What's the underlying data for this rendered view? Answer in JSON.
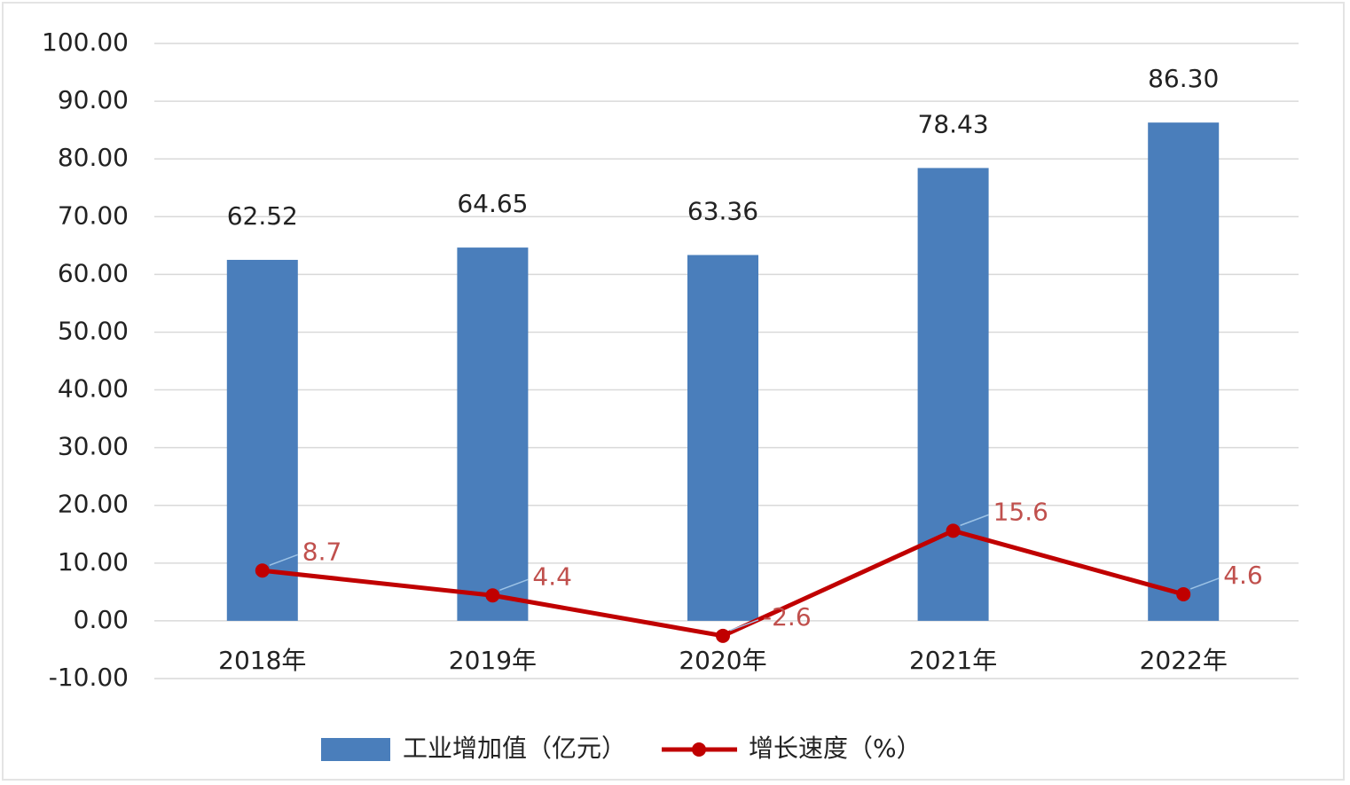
{
  "chart_data": {
    "type": "bar",
    "categories": [
      "2018年",
      "2019年",
      "2020年",
      "2021年",
      "2022年"
    ],
    "series": [
      {
        "name": "工业增加值（亿元）",
        "type": "bar",
        "color": "#4a7ebb",
        "values": [
          62.52,
          64.65,
          63.36,
          78.43,
          86.3
        ],
        "value_labels": [
          "62.52",
          "64.65",
          "63.36",
          "78.43",
          "86.30"
        ]
      },
      {
        "name": "增长速度（%）",
        "type": "line",
        "color": "#c00000",
        "values": [
          8.7,
          4.4,
          -2.6,
          15.6,
          4.6
        ]
      }
    ],
    "ylim": [
      -10,
      100
    ],
    "yticks": [
      {
        "value": -10,
        "label": "-10.00"
      },
      {
        "value": 0,
        "label": "0.00"
      },
      {
        "value": 10,
        "label": "10.00"
      },
      {
        "value": 20,
        "label": "20.00"
      },
      {
        "value": 30,
        "label": "30.00"
      },
      {
        "value": 40,
        "label": "40.00"
      },
      {
        "value": 50,
        "label": "50.00"
      },
      {
        "value": 60,
        "label": "60.00"
      },
      {
        "value": 70,
        "label": "70.00"
      },
      {
        "value": 80,
        "label": "80.00"
      },
      {
        "value": 90,
        "label": "90.00"
      },
      {
        "value": 100,
        "label": "100.00"
      }
    ],
    "grid": true,
    "legend": "bottom"
  }
}
